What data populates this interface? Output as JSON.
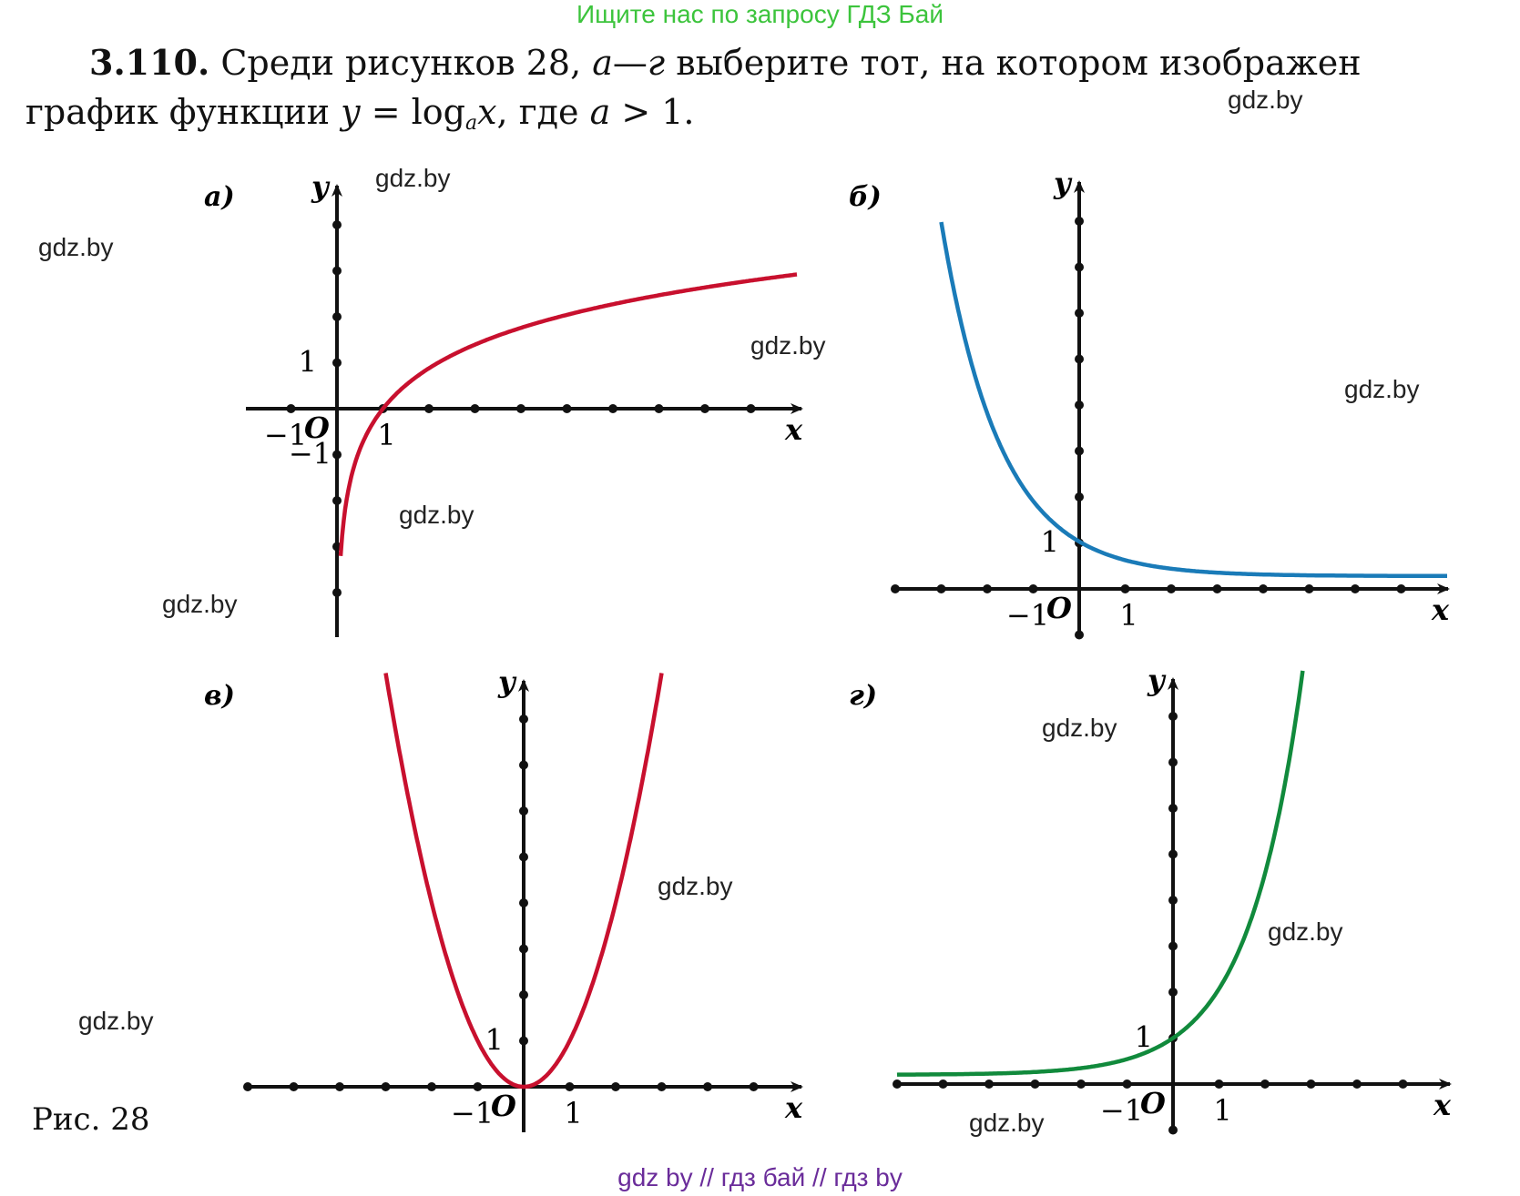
{
  "banner": "Ищите нас по запросу ГДЗ Бай",
  "problem": {
    "number": "3.110.",
    "line1_text": " Среди рисунков 28, ",
    "range_a": "а",
    "dash": "—",
    "range_g": "г",
    "line1_rest": " выберите тот, на котором изображен",
    "line2_start": "график функции ",
    "y": "y",
    "eq": " = log",
    "base": "a",
    "x": "x",
    "line2_rest": ", где ",
    "a": "a",
    "cond": " > 1."
  },
  "watermark": "gdz.by",
  "caption": "Рис. 28",
  "footer": "gdz by  //  гдз бай  //  гдз by",
  "colors": {
    "red": "#c8102e",
    "blue": "#1a7bb8",
    "green": "#118a3c",
    "banner": "#3cc43c",
    "footer": "#6a2c9a"
  },
  "chart_data": [
    {
      "panel_label": "а)",
      "type": "line",
      "function": "log_a(x), a>1",
      "xlabel": "x",
      "ylabel": "y",
      "origin_label": "O",
      "tick_labels": {
        "x_neg": "−1",
        "x_pos": "1",
        "y_pos": "1",
        "y_neg": "−1"
      },
      "xlim": [
        -2,
        9
      ],
      "ylim": [
        -5,
        4
      ],
      "points": [
        [
          0.08,
          -4.5
        ],
        [
          0.2,
          -2.7
        ],
        [
          0.5,
          -1.1
        ],
        [
          1,
          0
        ],
        [
          2,
          1.1
        ],
        [
          3,
          1.6
        ],
        [
          4,
          2.0
        ],
        [
          6,
          2.5
        ],
        [
          8,
          2.9
        ],
        [
          10,
          3.2
        ]
      ]
    },
    {
      "panel_label": "б)",
      "type": "line",
      "function": "a^x, 0<a<1",
      "xlabel": "x",
      "ylabel": "y",
      "origin_label": "O",
      "tick_labels": {
        "x_neg": "−1",
        "x_pos": "1",
        "y_pos": "1"
      },
      "xlim": [
        -4,
        8
      ],
      "ylim": [
        0,
        9
      ],
      "points": [
        [
          -3,
          8.5
        ],
        [
          -2,
          5.0
        ],
        [
          -1,
          2.6
        ],
        [
          0,
          1.0
        ],
        [
          0.5,
          0.6
        ],
        [
          1,
          0.4
        ],
        [
          2,
          0.3
        ],
        [
          4,
          0.28
        ],
        [
          8,
          0.28
        ]
      ]
    },
    {
      "panel_label": "в)",
      "type": "line",
      "function": "x^2",
      "xlabel": "x",
      "ylabel": "y",
      "origin_label": "O",
      "tick_labels": {
        "x_neg": "−1",
        "x_pos": "1",
        "y_pos": "1"
      },
      "xlim": [
        -6,
        6
      ],
      "ylim": [
        0,
        9
      ],
      "points": [
        [
          -3,
          9
        ],
        [
          -2,
          4
        ],
        [
          -1,
          1
        ],
        [
          0,
          0
        ],
        [
          1,
          1
        ],
        [
          2,
          4
        ],
        [
          3,
          9
        ]
      ]
    },
    {
      "panel_label": "г)",
      "type": "line",
      "function": "a^x, a>1",
      "xlabel": "x",
      "ylabel": "y",
      "origin_label": "O",
      "tick_labels": {
        "x_neg": "−1",
        "x_pos": "1",
        "y_pos": "1"
      },
      "xlim": [
        -6,
        6
      ],
      "ylim": [
        0,
        9
      ],
      "points": [
        [
          -6,
          0.2
        ],
        [
          -3,
          0.25
        ],
        [
          -2,
          0.4
        ],
        [
          -1,
          0.6
        ],
        [
          0,
          1.0
        ],
        [
          1,
          2.3
        ],
        [
          2,
          4.6
        ],
        [
          3,
          8.5
        ]
      ]
    }
  ]
}
